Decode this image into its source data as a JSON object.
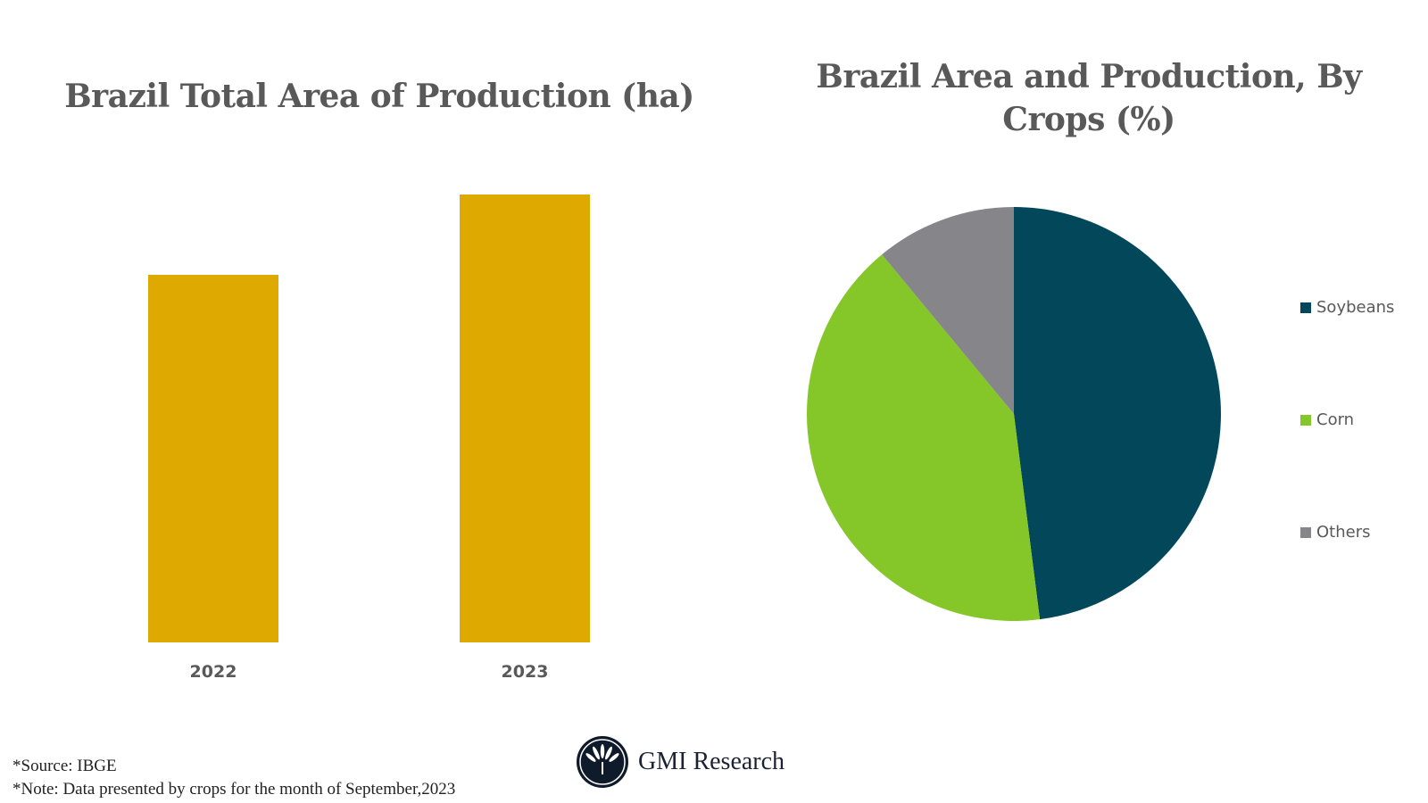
{
  "bar_chart": {
    "title": "Brazil Total Area of Production (ha)",
    "categories": [
      "2022",
      "2023"
    ],
    "bar_color": "#DEA900"
  },
  "pie_chart": {
    "title": "Brazil Area and Production, By Crops (%)",
    "legend": [
      {
        "label": "Soybeans",
        "color": "#03485A"
      },
      {
        "label": "Corn",
        "color": "#85C628"
      },
      {
        "label": "Others",
        "color": "#868589"
      }
    ]
  },
  "footer": {
    "source": "*Source: IBGE",
    "note": "*Note: Data presented by crops for the month of September,2023",
    "brand": "GMI Research"
  },
  "chart_data": [
    {
      "type": "bar",
      "title": "Brazil Total Area of Production (ha)",
      "categories": [
        "2022",
        "2023"
      ],
      "values": [
        82,
        100
      ],
      "value_note": "relative heights only; no axis or data labels shown (2023 normalized to 100)",
      "xlabel": "",
      "ylabel": "",
      "grid": false,
      "legend": "none"
    },
    {
      "type": "pie",
      "title": "Brazil Area and Production, By Crops (%)",
      "categories": [
        "Soybeans",
        "Corn",
        "Others"
      ],
      "values": [
        48,
        41,
        11
      ],
      "colors": [
        "#03485A",
        "#85C628",
        "#868589"
      ],
      "legend_position": "right"
    }
  ]
}
